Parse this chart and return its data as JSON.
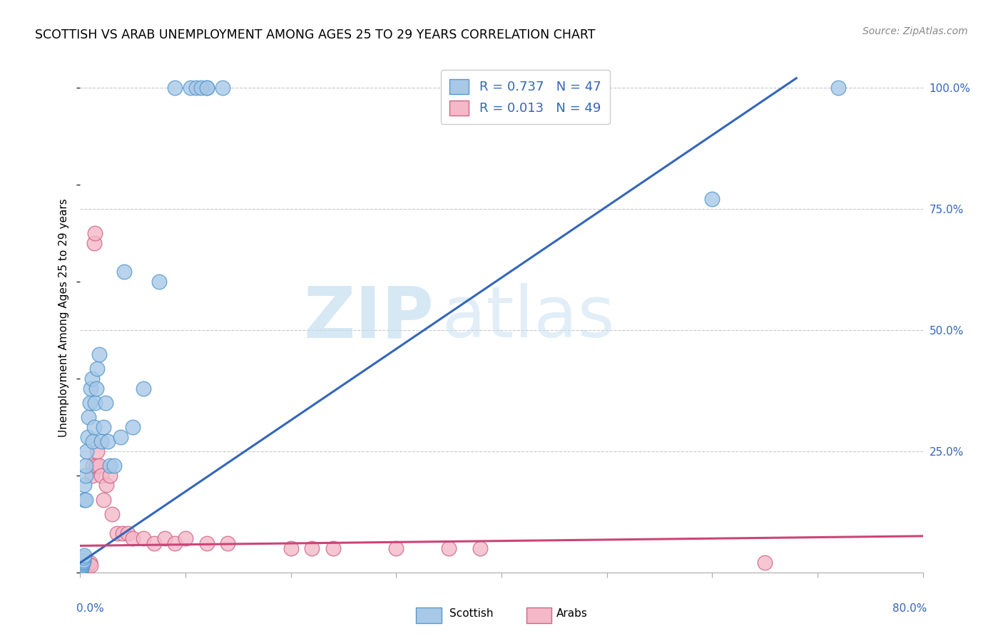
{
  "title": "SCOTTISH VS ARAB UNEMPLOYMENT AMONG AGES 25 TO 29 YEARS CORRELATION CHART",
  "source": "Source: ZipAtlas.com",
  "ylabel": "Unemployment Among Ages 25 to 29 years",
  "watermark_zip": "ZIP",
  "watermark_atlas": "atlas",
  "scottish_color": "#a8c8e8",
  "scottish_edge": "#5599cc",
  "arab_color": "#f4b8c8",
  "arab_edge": "#cc6688",
  "scottish_line_color": "#3366bb",
  "arab_line_color": "#cc4477",
  "legend_scottish": "R = 0.737   N = 47",
  "legend_arab": "R = 0.013   N = 49",
  "legend_text_color": "#3366bb",
  "xlim": [
    0.0,
    0.8
  ],
  "ylim": [
    0.0,
    1.05
  ],
  "right_ytick_vals": [
    1.0,
    0.75,
    0.5,
    0.25
  ],
  "right_ytick_labels": [
    "100.0%",
    "75.0%",
    "50.0%",
    "25.0%"
  ],
  "scottish_x": [
    0.001,
    0.001,
    0.001,
    0.002,
    0.002,
    0.002,
    0.003,
    0.003,
    0.003,
    0.004,
    0.004,
    0.004,
    0.005,
    0.005,
    0.005,
    0.006,
    0.007,
    0.008,
    0.009,
    0.01,
    0.011,
    0.012,
    0.013,
    0.014,
    0.015,
    0.016,
    0.018,
    0.02,
    0.022,
    0.024,
    0.026,
    0.028,
    0.032,
    0.038,
    0.042,
    0.05,
    0.06,
    0.075,
    0.09,
    0.105,
    0.12,
    0.135,
    0.11,
    0.115,
    0.12,
    0.6,
    0.72
  ],
  "scottish_y": [
    0.008,
    0.01,
    0.012,
    0.015,
    0.018,
    0.02,
    0.022,
    0.025,
    0.03,
    0.035,
    0.15,
    0.18,
    0.2,
    0.22,
    0.15,
    0.25,
    0.28,
    0.32,
    0.35,
    0.38,
    0.4,
    0.27,
    0.3,
    0.35,
    0.38,
    0.42,
    0.45,
    0.27,
    0.3,
    0.35,
    0.27,
    0.22,
    0.22,
    0.28,
    0.62,
    0.3,
    0.38,
    0.6,
    1.0,
    1.0,
    1.0,
    1.0,
    1.0,
    1.0,
    1.0,
    0.77,
    1.0
  ],
  "arab_x": [
    0.001,
    0.001,
    0.001,
    0.002,
    0.002,
    0.002,
    0.003,
    0.003,
    0.004,
    0.004,
    0.005,
    0.005,
    0.006,
    0.006,
    0.007,
    0.007,
    0.008,
    0.009,
    0.01,
    0.011,
    0.012,
    0.013,
    0.014,
    0.015,
    0.016,
    0.018,
    0.02,
    0.022,
    0.025,
    0.028,
    0.03,
    0.035,
    0.04,
    0.045,
    0.05,
    0.06,
    0.07,
    0.08,
    0.09,
    0.1,
    0.12,
    0.14,
    0.2,
    0.22,
    0.24,
    0.3,
    0.35,
    0.38,
    0.65
  ],
  "arab_y": [
    0.008,
    0.01,
    0.012,
    0.015,
    0.018,
    0.022,
    0.025,
    0.015,
    0.02,
    0.018,
    0.015,
    0.012,
    0.015,
    0.018,
    0.02,
    0.015,
    0.018,
    0.02,
    0.015,
    0.2,
    0.22,
    0.68,
    0.7,
    0.22,
    0.25,
    0.22,
    0.2,
    0.15,
    0.18,
    0.2,
    0.12,
    0.08,
    0.08,
    0.08,
    0.07,
    0.07,
    0.06,
    0.07,
    0.06,
    0.07,
    0.06,
    0.06,
    0.05,
    0.05,
    0.05,
    0.05,
    0.05,
    0.05,
    0.02
  ],
  "scottish_line_x": [
    0.0,
    0.68
  ],
  "scottish_line_y": [
    0.02,
    1.02
  ],
  "arab_line_x": [
    0.0,
    0.8
  ],
  "arab_line_y": [
    0.055,
    0.075
  ]
}
